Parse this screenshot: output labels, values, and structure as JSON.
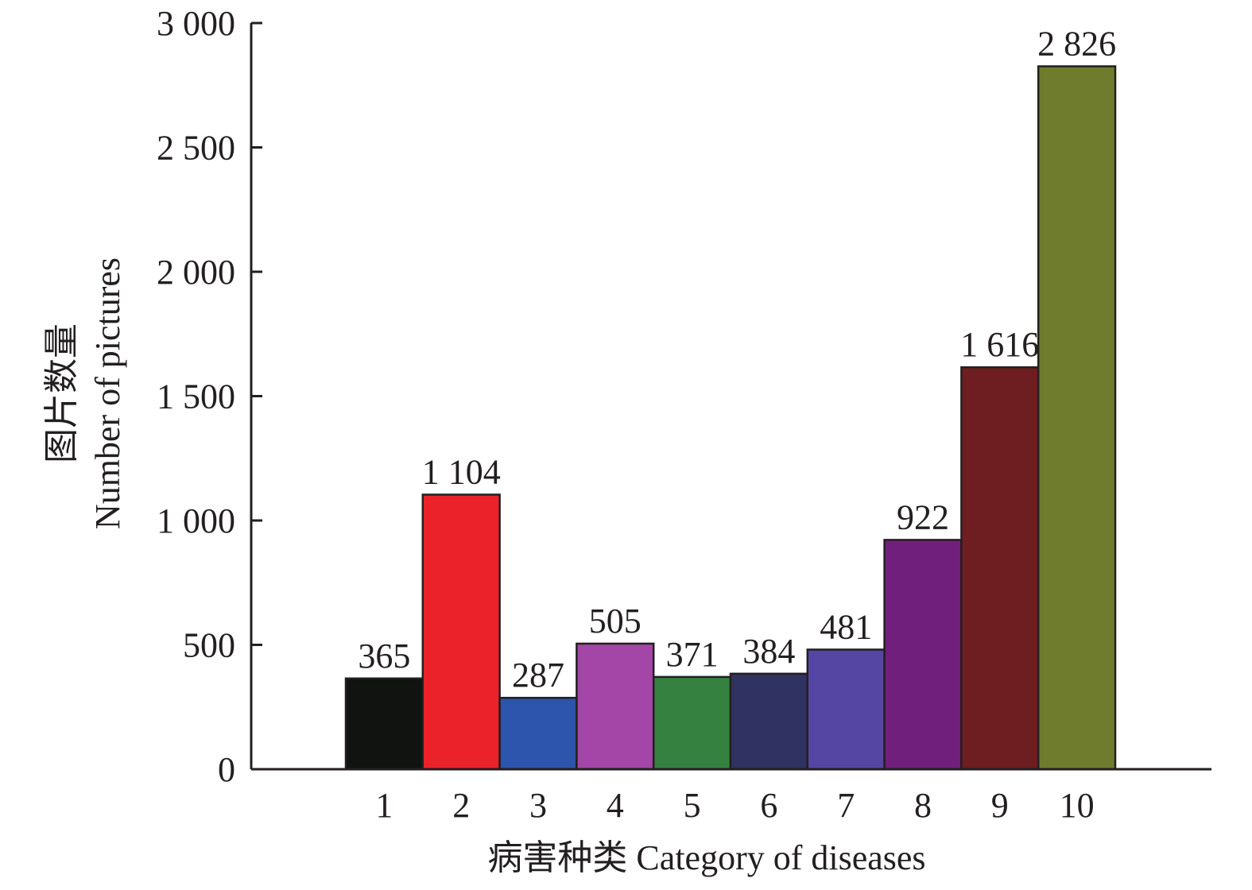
{
  "chart_data": {
    "type": "bar",
    "categories": [
      "1",
      "2",
      "3",
      "4",
      "5",
      "6",
      "7",
      "8",
      "9",
      "10"
    ],
    "values": [
      365,
      1104,
      287,
      505,
      371,
      384,
      481,
      922,
      1616,
      2826
    ],
    "value_labels": [
      "365",
      "1 104",
      "287",
      "505",
      "371",
      "384",
      "481",
      "922",
      "1 616",
      "2 826"
    ],
    "colors": [
      "#111311",
      "#ec222a",
      "#2e55ad",
      "#a346a8",
      "#358240",
      "#303262",
      "#5646a4",
      "#711f7c",
      "#6e1d21",
      "#6f7c2d"
    ],
    "xlabel": "病害种类 Category of diseases",
    "ylabel_cn": "图片数量",
    "ylabel_en": "Number of pictures",
    "ylim": [
      0,
      3000
    ],
    "yticks": [
      0,
      500,
      1000,
      1500,
      2000,
      2500,
      3000
    ],
    "ytick_labels": [
      "0",
      "500",
      "1 000",
      "1 500",
      "2 000",
      "2 500",
      "3 000"
    ],
    "grid": false,
    "legend": false
  }
}
